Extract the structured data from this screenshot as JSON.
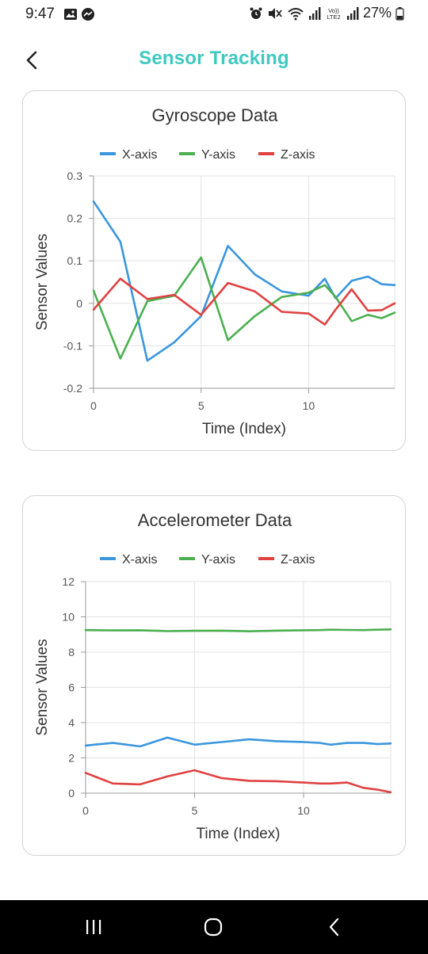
{
  "status_bar": {
    "time": "9:47",
    "battery": "27%",
    "icons": [
      "gallery-icon",
      "messenger-icon",
      "alarm-icon",
      "mute-icon",
      "wifi-icon",
      "signal-icon",
      "volte-icon",
      "signal-icon",
      "battery-icon"
    ]
  },
  "header": {
    "title": "Sensor Tracking",
    "back_icon": "back-arrow-icon",
    "title_color": "#3ec9c0"
  },
  "colors": {
    "x_axis": "#3a96dd",
    "y_axis": "#4caf50",
    "z_axis": "#e04141"
  },
  "chart_data": [
    {
      "type": "line",
      "title": "Gyroscope Data",
      "xlabel": "Time (Index)",
      "ylabel": "Sensor Values",
      "xlim": [
        0,
        14
      ],
      "ylim": [
        -0.2,
        0.3
      ],
      "xticks": [
        0,
        5,
        10
      ],
      "yticks": [
        -0.2,
        -0.1,
        0,
        0.1,
        0.2,
        0.3
      ],
      "ytick_labels": [
        "-0.2",
        "-0.1",
        "0",
        "0.1",
        "0.2",
        "0.3"
      ],
      "grid": true,
      "legend": "top-center",
      "x": [
        0,
        1.25,
        2.5,
        3.75,
        5,
        6.25,
        7.5,
        8.75,
        10,
        10.75,
        11.25,
        12,
        12.75,
        13.4,
        14
      ],
      "series": [
        {
          "name": "X-axis",
          "color": "#3a96dd",
          "values": [
            0.24,
            0.145,
            -0.135,
            -0.092,
            -0.03,
            0.135,
            0.068,
            0.028,
            0.018,
            0.058,
            0.012,
            0.053,
            0.063,
            0.045,
            0.043
          ]
        },
        {
          "name": "Y-axis",
          "color": "#4caf50",
          "values": [
            0.03,
            -0.13,
            0.005,
            0.018,
            0.108,
            -0.087,
            -0.03,
            0.015,
            0.025,
            0.043,
            0.015,
            -0.042,
            -0.027,
            -0.035,
            -0.022
          ]
        },
        {
          "name": "Z-axis",
          "color": "#e04141",
          "values": [
            -0.015,
            0.058,
            0.01,
            0.02,
            -0.027,
            0.048,
            0.028,
            -0.02,
            -0.024,
            -0.05,
            -0.015,
            0.033,
            -0.017,
            -0.016,
            0.0
          ]
        }
      ]
    },
    {
      "type": "line",
      "title": "Accelerometer Data",
      "xlabel": "Time (Index)",
      "ylabel": "Sensor Values",
      "xlim": [
        0,
        14
      ],
      "ylim": [
        0,
        12
      ],
      "xticks": [
        0,
        5,
        10
      ],
      "yticks": [
        0,
        2,
        4,
        6,
        8,
        10,
        12
      ],
      "ytick_labels": [
        "0",
        "2",
        "4",
        "6",
        "8",
        "10",
        "12"
      ],
      "grid": true,
      "legend": "top-center",
      "x": [
        0,
        1.25,
        2.5,
        3.75,
        5,
        6.25,
        7.5,
        8.75,
        10,
        10.75,
        11.25,
        12,
        12.75,
        13.4,
        14
      ],
      "series": [
        {
          "name": "X-axis",
          "color": "#3a96dd",
          "values": [
            2.7,
            2.85,
            2.65,
            3.15,
            2.75,
            2.9,
            3.05,
            2.95,
            2.9,
            2.85,
            2.75,
            2.85,
            2.85,
            2.78,
            2.82
          ]
        },
        {
          "name": "Y-axis",
          "color": "#4caf50",
          "values": [
            9.25,
            9.23,
            9.24,
            9.19,
            9.21,
            9.22,
            9.18,
            9.22,
            9.24,
            9.25,
            9.27,
            9.26,
            9.25,
            9.27,
            9.29
          ]
        },
        {
          "name": "Z-axis",
          "color": "#e04141",
          "values": [
            1.15,
            0.55,
            0.5,
            0.95,
            1.3,
            0.85,
            0.7,
            0.68,
            0.6,
            0.55,
            0.55,
            0.6,
            0.3,
            0.2,
            0.05
          ]
        }
      ]
    }
  ],
  "nav_bar": {
    "recent_icon": "recent-apps-icon",
    "home_icon": "home-icon",
    "back_icon": "nav-back-icon"
  }
}
